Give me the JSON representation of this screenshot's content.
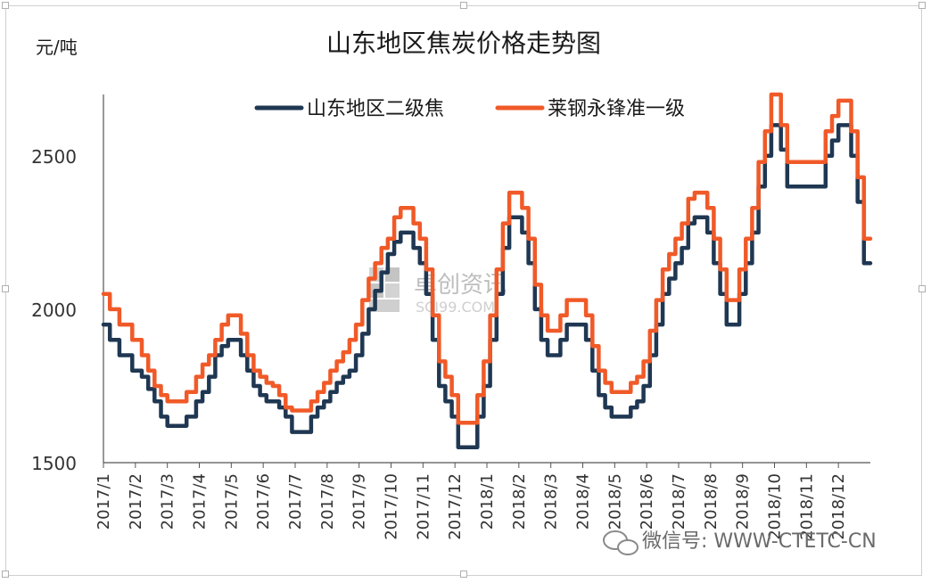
{
  "chart_data": {
    "type": "line",
    "title": "山东地区焦炭价格走势图",
    "ylabel": "元/吨",
    "ylim": [
      1500,
      2700
    ],
    "yticks": [
      1500,
      2000,
      2500
    ],
    "x_range": [
      "2017/1",
      "2018/12"
    ],
    "x_tick_labels": [
      "2017/1",
      "2017/2",
      "2017/3",
      "2017/4",
      "2017/5",
      "2017/6",
      "2017/7",
      "2017/8",
      "2017/9",
      "2017/10",
      "2017/11",
      "2017/12",
      "2018/1",
      "2018/2",
      "2018/3",
      "2018/4",
      "2018/5",
      "2018/6",
      "2018/7",
      "2018/8",
      "2018/9",
      "2018/10",
      "2018/11",
      "2018/12"
    ],
    "legend_position": "top",
    "grid": false,
    "series": [
      {
        "name": "山东地区二级焦",
        "color": "#1f3752",
        "points": [
          [
            0.0,
            1950
          ],
          [
            0.2,
            1900
          ],
          [
            0.5,
            1850
          ],
          [
            0.9,
            1800
          ],
          [
            1.2,
            1780
          ],
          [
            1.4,
            1740
          ],
          [
            1.6,
            1700
          ],
          [
            1.8,
            1650
          ],
          [
            2.0,
            1620
          ],
          [
            2.2,
            1620
          ],
          [
            2.4,
            1620
          ],
          [
            2.6,
            1650
          ],
          [
            2.9,
            1700
          ],
          [
            3.1,
            1730
          ],
          [
            3.3,
            1780
          ],
          [
            3.5,
            1850
          ],
          [
            3.7,
            1880
          ],
          [
            3.9,
            1900
          ],
          [
            4.1,
            1900
          ],
          [
            4.3,
            1850
          ],
          [
            4.5,
            1800
          ],
          [
            4.7,
            1750
          ],
          [
            4.9,
            1720
          ],
          [
            5.1,
            1700
          ],
          [
            5.3,
            1700
          ],
          [
            5.5,
            1680
          ],
          [
            5.7,
            1650
          ],
          [
            5.9,
            1600
          ],
          [
            6.3,
            1600
          ],
          [
            6.5,
            1650
          ],
          [
            6.7,
            1680
          ],
          [
            6.9,
            1700
          ],
          [
            7.1,
            1730
          ],
          [
            7.3,
            1760
          ],
          [
            7.5,
            1780
          ],
          [
            7.7,
            1800
          ],
          [
            7.9,
            1850
          ],
          [
            8.1,
            1920
          ],
          [
            8.3,
            2000
          ],
          [
            8.5,
            2060
          ],
          [
            8.7,
            2120
          ],
          [
            8.9,
            2180
          ],
          [
            9.1,
            2220
          ],
          [
            9.3,
            2250
          ],
          [
            9.5,
            2250
          ],
          [
            9.7,
            2200
          ],
          [
            9.9,
            2150
          ],
          [
            10.1,
            2050
          ],
          [
            10.3,
            1900
          ],
          [
            10.5,
            1750
          ],
          [
            10.7,
            1700
          ],
          [
            10.9,
            1650
          ],
          [
            11.1,
            1550
          ],
          [
            11.5,
            1550
          ],
          [
            11.7,
            1650
          ],
          [
            11.9,
            1750
          ],
          [
            12.1,
            1900
          ],
          [
            12.3,
            2050
          ],
          [
            12.5,
            2200
          ],
          [
            12.7,
            2300
          ],
          [
            12.9,
            2300
          ],
          [
            13.1,
            2250
          ],
          [
            13.3,
            2150
          ],
          [
            13.5,
            2000
          ],
          [
            13.7,
            1900
          ],
          [
            13.9,
            1850
          ],
          [
            14.1,
            1850
          ],
          [
            14.3,
            1900
          ],
          [
            14.5,
            1950
          ],
          [
            14.7,
            1950
          ],
          [
            14.9,
            1950
          ],
          [
            15.1,
            1900
          ],
          [
            15.3,
            1800
          ],
          [
            15.5,
            1720
          ],
          [
            15.7,
            1680
          ],
          [
            15.9,
            1650
          ],
          [
            16.1,
            1650
          ],
          [
            16.3,
            1650
          ],
          [
            16.5,
            1680
          ],
          [
            16.7,
            1700
          ],
          [
            16.9,
            1750
          ],
          [
            17.1,
            1850
          ],
          [
            17.3,
            1950
          ],
          [
            17.5,
            2050
          ],
          [
            17.7,
            2100
          ],
          [
            17.9,
            2150
          ],
          [
            18.1,
            2200
          ],
          [
            18.3,
            2280
          ],
          [
            18.5,
            2300
          ],
          [
            18.7,
            2300
          ],
          [
            18.9,
            2250
          ],
          [
            19.1,
            2150
          ],
          [
            19.3,
            2050
          ],
          [
            19.5,
            1950
          ],
          [
            19.7,
            1950
          ],
          [
            19.9,
            2050
          ],
          [
            20.1,
            2150
          ],
          [
            20.3,
            2250
          ],
          [
            20.5,
            2400
          ],
          [
            20.7,
            2500
          ],
          [
            20.9,
            2600
          ],
          [
            21.0,
            2600
          ],
          [
            21.2,
            2520
          ],
          [
            21.4,
            2400
          ],
          [
            21.6,
            2400
          ],
          [
            21.9,
            2400
          ],
          [
            22.4,
            2400
          ],
          [
            22.6,
            2500
          ],
          [
            22.8,
            2550
          ],
          [
            23.0,
            2600
          ],
          [
            23.2,
            2600
          ],
          [
            23.4,
            2500
          ],
          [
            23.6,
            2350
          ],
          [
            23.8,
            2150
          ],
          [
            24.0,
            2150
          ]
        ]
      },
      {
        "name": "莱钢永锋准一级",
        "color": "#f05a28",
        "points": [
          [
            0.0,
            2050
          ],
          [
            0.2,
            2000
          ],
          [
            0.5,
            1950
          ],
          [
            0.9,
            1900
          ],
          [
            1.2,
            1850
          ],
          [
            1.4,
            1800
          ],
          [
            1.6,
            1750
          ],
          [
            1.8,
            1720
          ],
          [
            2.0,
            1700
          ],
          [
            2.2,
            1700
          ],
          [
            2.4,
            1700
          ],
          [
            2.6,
            1730
          ],
          [
            2.9,
            1780
          ],
          [
            3.1,
            1820
          ],
          [
            3.3,
            1850
          ],
          [
            3.5,
            1900
          ],
          [
            3.7,
            1950
          ],
          [
            3.9,
            1980
          ],
          [
            4.1,
            1980
          ],
          [
            4.3,
            1920
          ],
          [
            4.5,
            1850
          ],
          [
            4.7,
            1800
          ],
          [
            4.9,
            1780
          ],
          [
            5.1,
            1760
          ],
          [
            5.3,
            1750
          ],
          [
            5.5,
            1720
          ],
          [
            5.7,
            1680
          ],
          [
            5.9,
            1670
          ],
          [
            6.3,
            1670
          ],
          [
            6.5,
            1700
          ],
          [
            6.7,
            1730
          ],
          [
            6.9,
            1760
          ],
          [
            7.1,
            1800
          ],
          [
            7.3,
            1830
          ],
          [
            7.5,
            1860
          ],
          [
            7.7,
            1900
          ],
          [
            7.9,
            1950
          ],
          [
            8.1,
            2030
          ],
          [
            8.3,
            2100
          ],
          [
            8.5,
            2150
          ],
          [
            8.7,
            2200
          ],
          [
            8.9,
            2230
          ],
          [
            9.1,
            2300
          ],
          [
            9.3,
            2330
          ],
          [
            9.5,
            2330
          ],
          [
            9.7,
            2280
          ],
          [
            9.9,
            2230
          ],
          [
            10.1,
            2130
          ],
          [
            10.3,
            1980
          ],
          [
            10.5,
            1830
          ],
          [
            10.7,
            1780
          ],
          [
            10.9,
            1720
          ],
          [
            11.1,
            1630
          ],
          [
            11.5,
            1630
          ],
          [
            11.7,
            1720
          ],
          [
            11.9,
            1830
          ],
          [
            12.1,
            1980
          ],
          [
            12.3,
            2130
          ],
          [
            12.5,
            2280
          ],
          [
            12.7,
            2380
          ],
          [
            12.9,
            2380
          ],
          [
            13.1,
            2330
          ],
          [
            13.3,
            2230
          ],
          [
            13.5,
            2080
          ],
          [
            13.7,
            1980
          ],
          [
            13.9,
            1930
          ],
          [
            14.1,
            1930
          ],
          [
            14.3,
            1980
          ],
          [
            14.5,
            2030
          ],
          [
            14.7,
            2030
          ],
          [
            14.9,
            2030
          ],
          [
            15.1,
            1980
          ],
          [
            15.3,
            1880
          ],
          [
            15.5,
            1800
          ],
          [
            15.7,
            1760
          ],
          [
            15.9,
            1730
          ],
          [
            16.1,
            1730
          ],
          [
            16.3,
            1730
          ],
          [
            16.5,
            1760
          ],
          [
            16.7,
            1780
          ],
          [
            16.9,
            1830
          ],
          [
            17.1,
            1930
          ],
          [
            17.3,
            2030
          ],
          [
            17.5,
            2130
          ],
          [
            17.7,
            2180
          ],
          [
            17.9,
            2230
          ],
          [
            18.1,
            2280
          ],
          [
            18.3,
            2360
          ],
          [
            18.5,
            2380
          ],
          [
            18.7,
            2380
          ],
          [
            18.9,
            2330
          ],
          [
            19.1,
            2230
          ],
          [
            19.3,
            2130
          ],
          [
            19.5,
            2030
          ],
          [
            19.7,
            2030
          ],
          [
            19.9,
            2130
          ],
          [
            20.1,
            2230
          ],
          [
            20.3,
            2330
          ],
          [
            20.5,
            2480
          ],
          [
            20.7,
            2580
          ],
          [
            20.9,
            2700
          ],
          [
            21.0,
            2700
          ],
          [
            21.2,
            2600
          ],
          [
            21.4,
            2480
          ],
          [
            21.6,
            2480
          ],
          [
            21.9,
            2480
          ],
          [
            22.4,
            2480
          ],
          [
            22.6,
            2580
          ],
          [
            22.8,
            2630
          ],
          [
            23.0,
            2680
          ],
          [
            23.2,
            2680
          ],
          [
            23.4,
            2580
          ],
          [
            23.6,
            2430
          ],
          [
            23.8,
            2230
          ],
          [
            24.0,
            2230
          ]
        ]
      }
    ]
  },
  "watermark": {
    "brand": "卓创资讯",
    "site": "SCI99.COM"
  },
  "footer": {
    "wechat_label": "微信号: WWW-CTETC-CN",
    "wechat_icon": "wechat-icon"
  }
}
